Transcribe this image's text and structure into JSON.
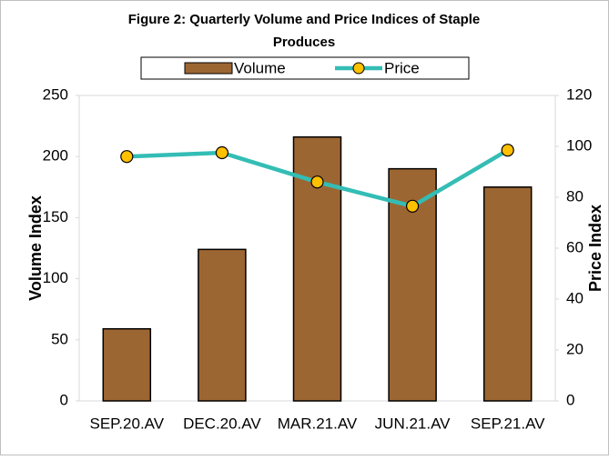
{
  "chart_data": {
    "type": "bar_line",
    "title": "Figure 2: Quarterly Volume and Price Indices of Staple Produces",
    "categories": [
      "SEP.20.AV",
      "DEC.20.AV",
      "MAR.21.AV",
      "JUN.21.AV",
      "SEP.21.AV"
    ],
    "series": [
      {
        "name": "Volume",
        "type": "bar",
        "color": "#9c6633",
        "axis": "y",
        "values": [
          59,
          124,
          216,
          190,
          175
        ]
      },
      {
        "name": "Price",
        "type": "line",
        "color": "#33bdb5",
        "marker_color": "#ffc000",
        "axis": "y2",
        "values": [
          96,
          97.5,
          86,
          76.5,
          98.5
        ]
      }
    ],
    "ylabel": "Volume Index",
    "y2label": "Price Index",
    "ylim": [
      0,
      250
    ],
    "yticks": [
      0,
      50,
      100,
      150,
      200,
      250
    ],
    "y2lim": [
      0,
      120
    ],
    "y2ticks": [
      0,
      20,
      40,
      60,
      80,
      100,
      120
    ],
    "grid": false,
    "legend": "top"
  }
}
